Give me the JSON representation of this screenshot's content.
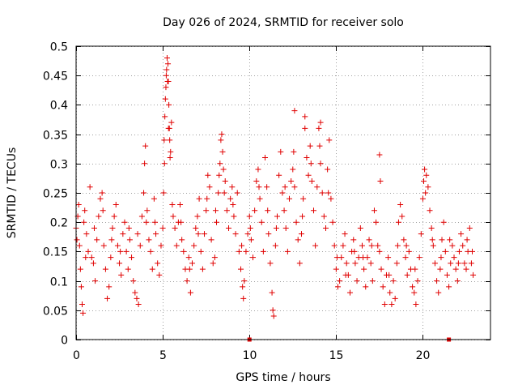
{
  "chart_data": {
    "type": "scatter",
    "title": "Day 026 of 2024, SRMTID for receiver solo",
    "xlabel": "GPS time / hours",
    "ylabel": "SRMTID / TECUs",
    "xlim": [
      0,
      23.9
    ],
    "ylim": [
      0,
      0.5
    ],
    "xticks": [
      0,
      5,
      10,
      15,
      20
    ],
    "xtick_labels": [
      "0",
      "5",
      "10",
      "15",
      "20"
    ],
    "yticks": [
      0,
      0.05,
      0.1,
      0.15,
      0.2,
      0.25,
      0.3,
      0.35,
      0.4,
      0.45,
      0.5
    ],
    "ytick_labels": [
      "0",
      "0.05",
      "0.1",
      "0.15",
      "0.2",
      "0.25",
      "0.3",
      "0.35",
      "0.4",
      "0.45",
      "0.5"
    ],
    "grid": true,
    "marker": "+",
    "series": [
      {
        "name": "SRMTID",
        "color": "#e00000",
        "points": [
          [
            0.0,
            0.19
          ],
          [
            0.1,
            0.21
          ],
          [
            0.15,
            0.23
          ],
          [
            0.2,
            0.16
          ],
          [
            0.25,
            0.12
          ],
          [
            0.3,
            0.09
          ],
          [
            0.35,
            0.06
          ],
          [
            0.4,
            0.045
          ],
          [
            0.45,
            0.2
          ],
          [
            0.5,
            0.22
          ],
          [
            0.6,
            0.18
          ],
          [
            0.7,
            0.15
          ],
          [
            0.8,
            0.26
          ],
          [
            0.9,
            0.14
          ],
          [
            1.0,
            0.13
          ],
          [
            1.1,
            0.1
          ],
          [
            1.2,
            0.17
          ],
          [
            1.3,
            0.21
          ],
          [
            1.4,
            0.24
          ],
          [
            1.5,
            0.25
          ],
          [
            1.6,
            0.16
          ],
          [
            1.7,
            0.12
          ],
          [
            1.8,
            0.07
          ],
          [
            1.9,
            0.09
          ],
          [
            2.0,
            0.14
          ],
          [
            2.1,
            0.19
          ],
          [
            2.2,
            0.21
          ],
          [
            2.3,
            0.23
          ],
          [
            2.4,
            0.16
          ],
          [
            2.5,
            0.13
          ],
          [
            2.6,
            0.11
          ],
          [
            2.7,
            0.18
          ],
          [
            2.8,
            0.2
          ],
          [
            2.9,
            0.15
          ],
          [
            3.0,
            0.12
          ],
          [
            3.1,
            0.17
          ],
          [
            3.2,
            0.14
          ],
          [
            3.3,
            0.1
          ],
          [
            3.4,
            0.08
          ],
          [
            3.5,
            0.07
          ],
          [
            3.6,
            0.06
          ],
          [
            3.7,
            0.16
          ],
          [
            3.8,
            0.21
          ],
          [
            3.9,
            0.25
          ],
          [
            3.95,
            0.3
          ],
          [
            4.0,
            0.33
          ],
          [
            4.1,
            0.22
          ],
          [
            4.2,
            0.17
          ],
          [
            4.3,
            0.15
          ],
          [
            4.4,
            0.12
          ],
          [
            4.5,
            0.24
          ],
          [
            4.6,
            0.18
          ],
          [
            4.7,
            0.13
          ],
          [
            4.8,
            0.11
          ],
          [
            4.9,
            0.16
          ],
          [
            5.0,
            0.19
          ],
          [
            5.05,
            0.25
          ],
          [
            5.1,
            0.3
          ],
          [
            5.15,
            0.41
          ],
          [
            5.2,
            0.45
          ],
          [
            5.25,
            0.48
          ],
          [
            5.3,
            0.47
          ],
          [
            5.32,
            0.44
          ],
          [
            5.35,
            0.4
          ],
          [
            5.38,
            0.36
          ],
          [
            5.4,
            0.34
          ],
          [
            5.45,
            0.32
          ],
          [
            5.5,
            0.37
          ],
          [
            5.55,
            0.23
          ],
          [
            5.6,
            0.21
          ],
          [
            5.7,
            0.19
          ],
          [
            5.8,
            0.16
          ],
          [
            5.9,
            0.2
          ],
          [
            6.0,
            0.23
          ],
          [
            6.1,
            0.17
          ],
          [
            6.2,
            0.15
          ],
          [
            6.3,
            0.12
          ],
          [
            6.4,
            0.1
          ],
          [
            6.5,
            0.14
          ],
          [
            6.6,
            0.08
          ],
          [
            6.7,
            0.13
          ],
          [
            6.8,
            0.16
          ],
          [
            6.9,
            0.19
          ],
          [
            7.0,
            0.21
          ],
          [
            7.1,
            0.24
          ],
          [
            7.2,
            0.15
          ],
          [
            7.3,
            0.12
          ],
          [
            7.4,
            0.18
          ],
          [
            7.5,
            0.22
          ],
          [
            7.6,
            0.28
          ],
          [
            7.7,
            0.26
          ],
          [
            7.8,
            0.17
          ],
          [
            7.9,
            0.13
          ],
          [
            8.0,
            0.14
          ],
          [
            8.1,
            0.2
          ],
          [
            8.2,
            0.25
          ],
          [
            8.3,
            0.3
          ],
          [
            8.35,
            0.34
          ],
          [
            8.4,
            0.35
          ],
          [
            8.5,
            0.29
          ],
          [
            8.6,
            0.27
          ],
          [
            8.7,
            0.22
          ],
          [
            8.8,
            0.19
          ],
          [
            8.9,
            0.24
          ],
          [
            9.0,
            0.26
          ],
          [
            9.1,
            0.21
          ],
          [
            9.2,
            0.18
          ],
          [
            9.3,
            0.25
          ],
          [
            9.4,
            0.15
          ],
          [
            9.5,
            0.12
          ],
          [
            9.6,
            0.09
          ],
          [
            9.65,
            0.07
          ],
          [
            9.7,
            0.1
          ],
          [
            9.8,
            0.15
          ],
          [
            9.9,
            0.18
          ],
          [
            10.0,
            0.21
          ],
          [
            10.1,
            0.17
          ],
          [
            10.2,
            0.14
          ],
          [
            10.3,
            0.22
          ],
          [
            10.4,
            0.27
          ],
          [
            10.5,
            0.29
          ],
          [
            10.6,
            0.24
          ],
          [
            10.7,
            0.2
          ],
          [
            10.8,
            0.15
          ],
          [
            10.9,
            0.31
          ],
          [
            11.0,
            0.26
          ],
          [
            11.1,
            0.18
          ],
          [
            11.2,
            0.13
          ],
          [
            11.3,
            0.08
          ],
          [
            11.35,
            0.05
          ],
          [
            11.4,
            0.04
          ],
          [
            11.5,
            0.16
          ],
          [
            11.6,
            0.21
          ],
          [
            11.7,
            0.28
          ],
          [
            11.8,
            0.32
          ],
          [
            11.9,
            0.25
          ],
          [
            12.0,
            0.22
          ],
          [
            12.1,
            0.19
          ],
          [
            12.2,
            0.15
          ],
          [
            12.3,
            0.24
          ],
          [
            12.4,
            0.27
          ],
          [
            12.5,
            0.29
          ],
          [
            12.6,
            0.26
          ],
          [
            12.7,
            0.2
          ],
          [
            12.8,
            0.17
          ],
          [
            12.9,
            0.13
          ],
          [
            13.0,
            0.18
          ],
          [
            13.1,
            0.24
          ],
          [
            13.2,
            0.36
          ],
          [
            13.3,
            0.31
          ],
          [
            13.4,
            0.28
          ],
          [
            13.5,
            0.33
          ],
          [
            13.6,
            0.27
          ],
          [
            13.7,
            0.22
          ],
          [
            13.8,
            0.16
          ],
          [
            13.9,
            0.26
          ],
          [
            14.0,
            0.36
          ],
          [
            14.1,
            0.3
          ],
          [
            14.2,
            0.25
          ],
          [
            14.3,
            0.21
          ],
          [
            14.4,
            0.19
          ],
          [
            14.5,
            0.29
          ],
          [
            14.6,
            0.34
          ],
          [
            14.7,
            0.24
          ],
          [
            14.8,
            0.2
          ],
          [
            14.9,
            0.16
          ],
          [
            15.0,
            0.12
          ],
          [
            15.1,
            0.09
          ],
          [
            15.2,
            0.1
          ],
          [
            15.3,
            0.14
          ],
          [
            15.4,
            0.16
          ],
          [
            15.5,
            0.18
          ],
          [
            15.6,
            0.13
          ],
          [
            15.7,
            0.11
          ],
          [
            15.8,
            0.08
          ],
          [
            15.9,
            0.15
          ],
          [
            16.0,
            0.17
          ],
          [
            16.1,
            0.13
          ],
          [
            16.2,
            0.1
          ],
          [
            16.3,
            0.14
          ],
          [
            16.4,
            0.19
          ],
          [
            16.5,
            0.16
          ],
          [
            16.6,
            0.12
          ],
          [
            16.7,
            0.09
          ],
          [
            16.8,
            0.14
          ],
          [
            16.9,
            0.17
          ],
          [
            17.0,
            0.13
          ],
          [
            17.1,
            0.1
          ],
          [
            17.2,
            0.22
          ],
          [
            17.3,
            0.2
          ],
          [
            17.4,
            0.16
          ],
          [
            17.5,
            0.15
          ],
          [
            17.6,
            0.12
          ],
          [
            17.7,
            0.09
          ],
          [
            17.8,
            0.06
          ],
          [
            17.9,
            0.11
          ],
          [
            18.0,
            0.14
          ],
          [
            18.1,
            0.08
          ],
          [
            18.2,
            0.06
          ],
          [
            18.3,
            0.1
          ],
          [
            18.4,
            0.07
          ],
          [
            18.5,
            0.13
          ],
          [
            18.6,
            0.2
          ],
          [
            18.7,
            0.23
          ],
          [
            18.8,
            0.21
          ],
          [
            18.9,
            0.17
          ],
          [
            19.0,
            0.14
          ],
          [
            19.1,
            0.11
          ],
          [
            19.2,
            0.15
          ],
          [
            19.3,
            0.12
          ],
          [
            19.4,
            0.09
          ],
          [
            19.5,
            0.08
          ],
          [
            19.6,
            0.06
          ],
          [
            19.7,
            0.1
          ],
          [
            19.8,
            0.14
          ],
          [
            19.9,
            0.18
          ],
          [
            20.0,
            0.24
          ],
          [
            20.05,
            0.27
          ],
          [
            20.1,
            0.29
          ],
          [
            20.2,
            0.28
          ],
          [
            20.3,
            0.26
          ],
          [
            20.4,
            0.22
          ],
          [
            20.5,
            0.19
          ],
          [
            20.6,
            0.16
          ],
          [
            20.7,
            0.13
          ],
          [
            20.8,
            0.1
          ],
          [
            20.9,
            0.08
          ],
          [
            21.0,
            0.12
          ],
          [
            21.1,
            0.17
          ],
          [
            21.2,
            0.2
          ],
          [
            21.3,
            0.15
          ],
          [
            21.4,
            0.11
          ],
          [
            21.5,
            0.09
          ],
          [
            21.6,
            0.13
          ],
          [
            21.7,
            0.16
          ],
          [
            21.8,
            0.14
          ],
          [
            21.9,
            0.12
          ],
          [
            22.0,
            0.1
          ],
          [
            22.1,
            0.15
          ],
          [
            22.2,
            0.18
          ],
          [
            22.3,
            0.16
          ],
          [
            22.4,
            0.13
          ],
          [
            22.5,
            0.12
          ],
          [
            22.6,
            0.15
          ],
          [
            22.7,
            0.19
          ],
          [
            22.8,
            0.13
          ],
          [
            22.9,
            0.11
          ],
          [
            0.05,
            0.17
          ],
          [
            0.55,
            0.14
          ],
          [
            1.05,
            0.19
          ],
          [
            1.55,
            0.22
          ],
          [
            2.05,
            0.17
          ],
          [
            2.55,
            0.15
          ],
          [
            3.05,
            0.19
          ],
          [
            3.55,
            0.18
          ],
          [
            4.05,
            0.2
          ],
          [
            4.55,
            0.2
          ],
          [
            5.08,
            0.34
          ],
          [
            5.12,
            0.38
          ],
          [
            5.18,
            0.43
          ],
          [
            5.22,
            0.46
          ],
          [
            5.28,
            0.44
          ],
          [
            5.33,
            0.36
          ],
          [
            5.42,
            0.31
          ],
          [
            6.05,
            0.2
          ],
          [
            6.55,
            0.12
          ],
          [
            7.05,
            0.18
          ],
          [
            7.55,
            0.24
          ],
          [
            8.05,
            0.22
          ],
          [
            8.25,
            0.28
          ],
          [
            8.45,
            0.32
          ],
          [
            8.55,
            0.25
          ],
          [
            9.05,
            0.23
          ],
          [
            9.55,
            0.16
          ],
          [
            10.05,
            0.19
          ],
          [
            10.55,
            0.26
          ],
          [
            11.05,
            0.22
          ],
          [
            11.55,
            0.19
          ],
          [
            12.05,
            0.26
          ],
          [
            12.55,
            0.32
          ],
          [
            13.05,
            0.21
          ],
          [
            13.55,
            0.3
          ],
          [
            14.05,
            0.33
          ],
          [
            14.55,
            0.25
          ],
          [
            15.05,
            0.14
          ],
          [
            15.55,
            0.11
          ],
          [
            16.05,
            0.15
          ],
          [
            16.55,
            0.14
          ],
          [
            17.05,
            0.16
          ],
          [
            17.5,
            0.315
          ],
          [
            17.55,
            0.27
          ],
          [
            18.05,
            0.11
          ],
          [
            18.55,
            0.16
          ],
          [
            19.05,
            0.16
          ],
          [
            19.55,
            0.12
          ],
          [
            20.15,
            0.25
          ],
          [
            20.55,
            0.17
          ],
          [
            21.05,
            0.14
          ],
          [
            21.55,
            0.17
          ],
          [
            22.05,
            0.13
          ],
          [
            22.55,
            0.17
          ],
          [
            22.85,
            0.15
          ],
          [
            12.6,
            0.39
          ],
          [
            13.2,
            0.38
          ],
          [
            14.1,
            0.37
          ]
        ]
      },
      {
        "name": "zero markers",
        "color": "#e00000",
        "marker": "square",
        "points": [
          [
            10.0,
            0.0
          ],
          [
            21.5,
            0.0
          ]
        ]
      }
    ]
  }
}
